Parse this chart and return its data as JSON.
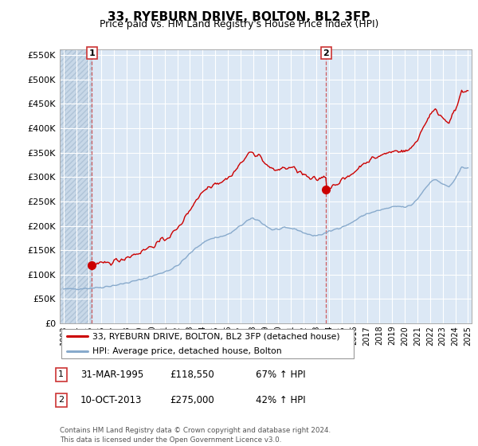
{
  "title": "33, RYEBURN DRIVE, BOLTON, BL2 3FP",
  "subtitle": "Price paid vs. HM Land Registry's House Price Index (HPI)",
  "ylim": [
    0,
    562500
  ],
  "yticks": [
    0,
    50000,
    100000,
    150000,
    200000,
    250000,
    300000,
    350000,
    400000,
    450000,
    500000,
    550000
  ],
  "ytick_labels": [
    "£0",
    "£50K",
    "£100K",
    "£150K",
    "£200K",
    "£250K",
    "£300K",
    "£350K",
    "£400K",
    "£450K",
    "£500K",
    "£550K"
  ],
  "sale1_x": 1995.25,
  "sale1_price": 118550,
  "sale2_x": 2013.78,
  "sale2_price": 275000,
  "legend_red": "33, RYEBURN DRIVE, BOLTON, BL2 3FP (detached house)",
  "legend_blue": "HPI: Average price, detached house, Bolton",
  "footer": "Contains HM Land Registry data © Crown copyright and database right 2024.\nThis data is licensed under the Open Government Licence v3.0.",
  "red_color": "#cc0000",
  "blue_color": "#88aacc",
  "bg_color": "#dce8f5",
  "grid_color": "#ffffff",
  "vline_color": "#cc4444",
  "hatch_color": "#c8d8e8"
}
